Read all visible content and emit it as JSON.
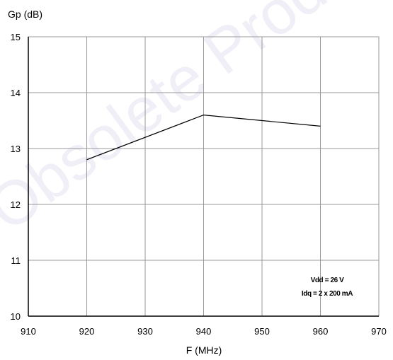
{
  "watermark": "Obsolete Product(s)",
  "chart_data": {
    "type": "line",
    "ylabel": "Gp (dB)",
    "xlabel": "F (MHz)",
    "xlim": [
      910,
      970
    ],
    "ylim": [
      10,
      15
    ],
    "x_ticks": [
      "910",
      "920",
      "930",
      "940",
      "950",
      "960",
      "970"
    ],
    "y_ticks": [
      "10",
      "11",
      "12",
      "13",
      "14",
      "15"
    ],
    "grid": true,
    "series": [
      {
        "x": [
          920,
          940,
          960
        ],
        "y": [
          12.8,
          13.6,
          13.4
        ],
        "color": "#000000"
      }
    ],
    "annotations": [
      "Vdd = 26 V",
      "Idq = 2 x 200 mA"
    ]
  }
}
